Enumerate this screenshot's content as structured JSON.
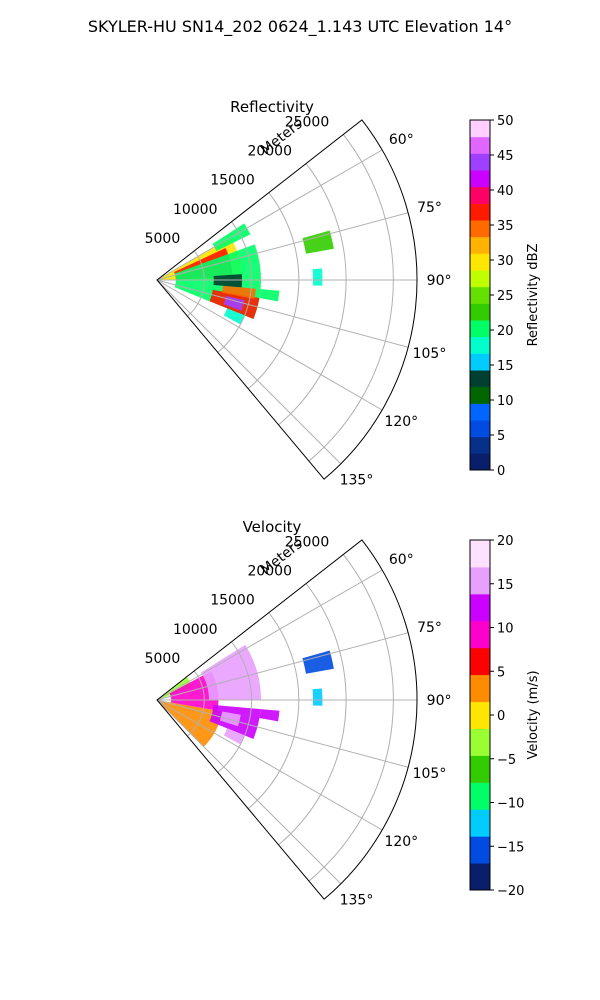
{
  "figure_title": "SKYLER-HU  SN14_202  0624_1.143 UTC Elevation 14°",
  "colors": {
    "reflectivity_scale": [
      "#0a1f6b",
      "#06308a",
      "#004ce0",
      "#0066ff",
      "#006600",
      "#004030",
      "#00ccff",
      "#00ffcc",
      "#00ff66",
      "#33cc00",
      "#66e000",
      "#bfff00",
      "#ffe600",
      "#ffb300",
      "#ff6a00",
      "#ff1a00",
      "#ff0066",
      "#cc00ff",
      "#a040ff",
      "#e066ff",
      "#ffd0ff"
    ],
    "velocity_scale": [
      "#0a1f6b",
      "#004ce0",
      "#00ccff",
      "#00ff66",
      "#33cc00",
      "#99ff33",
      "#ffe600",
      "#ff8c00",
      "#ff0000",
      "#ff00cc",
      "#cc00ff",
      "#e8a0ff",
      "#ffe0ff"
    ],
    "grid": "#b0b0b0",
    "frame": "#000000"
  },
  "chart_data": [
    {
      "type": "heatmap",
      "projection": "polar-sector",
      "title": "Reflectivity",
      "radial_label": "Meters",
      "radial_ticks": [
        "5000",
        "10000",
        "15000",
        "20000",
        "25000"
      ],
      "radial_values": [
        5000,
        10000,
        15000,
        20000,
        25000
      ],
      "radial_max": 27500,
      "azimuth_ticks": [
        "60°",
        "75°",
        "90°",
        "105°",
        "120°",
        "135°"
      ],
      "azimuth_values": [
        60,
        75,
        90,
        105,
        120,
        135
      ],
      "azimuth_range": [
        52,
        140
      ],
      "colorbar": {
        "label": "Reflectivity dBZ",
        "range": [
          0,
          50
        ],
        "ticks": [
          "0",
          "5",
          "10",
          "15",
          "20",
          "25",
          "30",
          "35",
          "40",
          "45",
          "50"
        ]
      },
      "echoes": [
        {
          "az_range": [
            60,
            90
          ],
          "r_range": [
            0,
            9000
          ],
          "value": 30
        },
        {
          "az_range": [
            65,
            88
          ],
          "r_range": [
            2000,
            8000
          ],
          "value": 36
        },
        {
          "az_range": [
            70,
            112
          ],
          "r_range": [
            2000,
            11000
          ],
          "value": 20
        },
        {
          "az_range": [
            100,
            112
          ],
          "r_range": [
            6000,
            11000
          ],
          "value": 38
        },
        {
          "az_range": [
            103,
            110
          ],
          "r_range": [
            7500,
            9500
          ],
          "value": 44
        },
        {
          "az_range": [
            95,
            101
          ],
          "r_range": [
            7000,
            10500
          ],
          "value": 35
        },
        {
          "az_range": [
            86,
            95
          ],
          "r_range": [
            6000,
            9000
          ],
          "value": 12
        },
        {
          "az_range": [
            95,
            100
          ],
          "r_range": [
            11000,
            13000
          ],
          "value": 20
        },
        {
          "az_range": [
            86,
            92
          ],
          "r_range": [
            16500,
            17500
          ],
          "value": 18
        },
        {
          "az_range": [
            74,
            80
          ],
          "r_range": [
            16000,
            19000
          ],
          "value": 22
        },
        {
          "az_range": [
            57,
            64
          ],
          "r_range": [
            7000,
            11000
          ],
          "value": 20
        },
        {
          "az_range": [
            112,
            118
          ],
          "r_range": [
            8000,
            10000
          ],
          "value": 18
        }
      ]
    },
    {
      "type": "heatmap",
      "projection": "polar-sector",
      "title": "Velocity",
      "radial_label": "Meters",
      "radial_ticks": [
        "5000",
        "10000",
        "15000",
        "20000",
        "25000"
      ],
      "radial_values": [
        5000,
        10000,
        15000,
        20000,
        25000
      ],
      "radial_max": 27500,
      "azimuth_ticks": [
        "60°",
        "75°",
        "90°",
        "105°",
        "120°",
        "135°"
      ],
      "azimuth_values": [
        60,
        75,
        90,
        105,
        120,
        135
      ],
      "azimuth_range": [
        52,
        140
      ],
      "colorbar": {
        "label": "Velocity (m/s)",
        "range": [
          -20,
          20
        ],
        "ticks": [
          "−20",
          "−15",
          "−10",
          "−5",
          "0",
          "5",
          "10",
          "15",
          "20"
        ]
      },
      "echoes": [
        {
          "az_range": [
            52,
            70
          ],
          "r_range": [
            0,
            4000
          ],
          "value": -2
        },
        {
          "az_range": [
            100,
            135
          ],
          "r_range": [
            0,
            7000
          ],
          "value": 2
        },
        {
          "az_range": [
            62,
            100
          ],
          "r_range": [
            1500,
            6500
          ],
          "value": 9
        },
        {
          "az_range": [
            58,
            90
          ],
          "r_range": [
            5500,
            11000
          ],
          "value": 15
        },
        {
          "az_range": [
            95,
            112
          ],
          "r_range": [
            6000,
            11000
          ],
          "value": 11
        },
        {
          "az_range": [
            100,
            108
          ],
          "r_range": [
            7000,
            9000
          ],
          "value": 14
        },
        {
          "az_range": [
            95,
            100
          ],
          "r_range": [
            11000,
            13000
          ],
          "value": 12
        },
        {
          "az_range": [
            86,
            92
          ],
          "r_range": [
            16500,
            17500
          ],
          "value": -12
        },
        {
          "az_range": [
            74,
            80
          ],
          "r_range": [
            16000,
            19000
          ],
          "value": -14
        },
        {
          "az_range": [
            112,
            118
          ],
          "r_range": [
            8000,
            10000
          ],
          "value": 14
        }
      ]
    }
  ]
}
